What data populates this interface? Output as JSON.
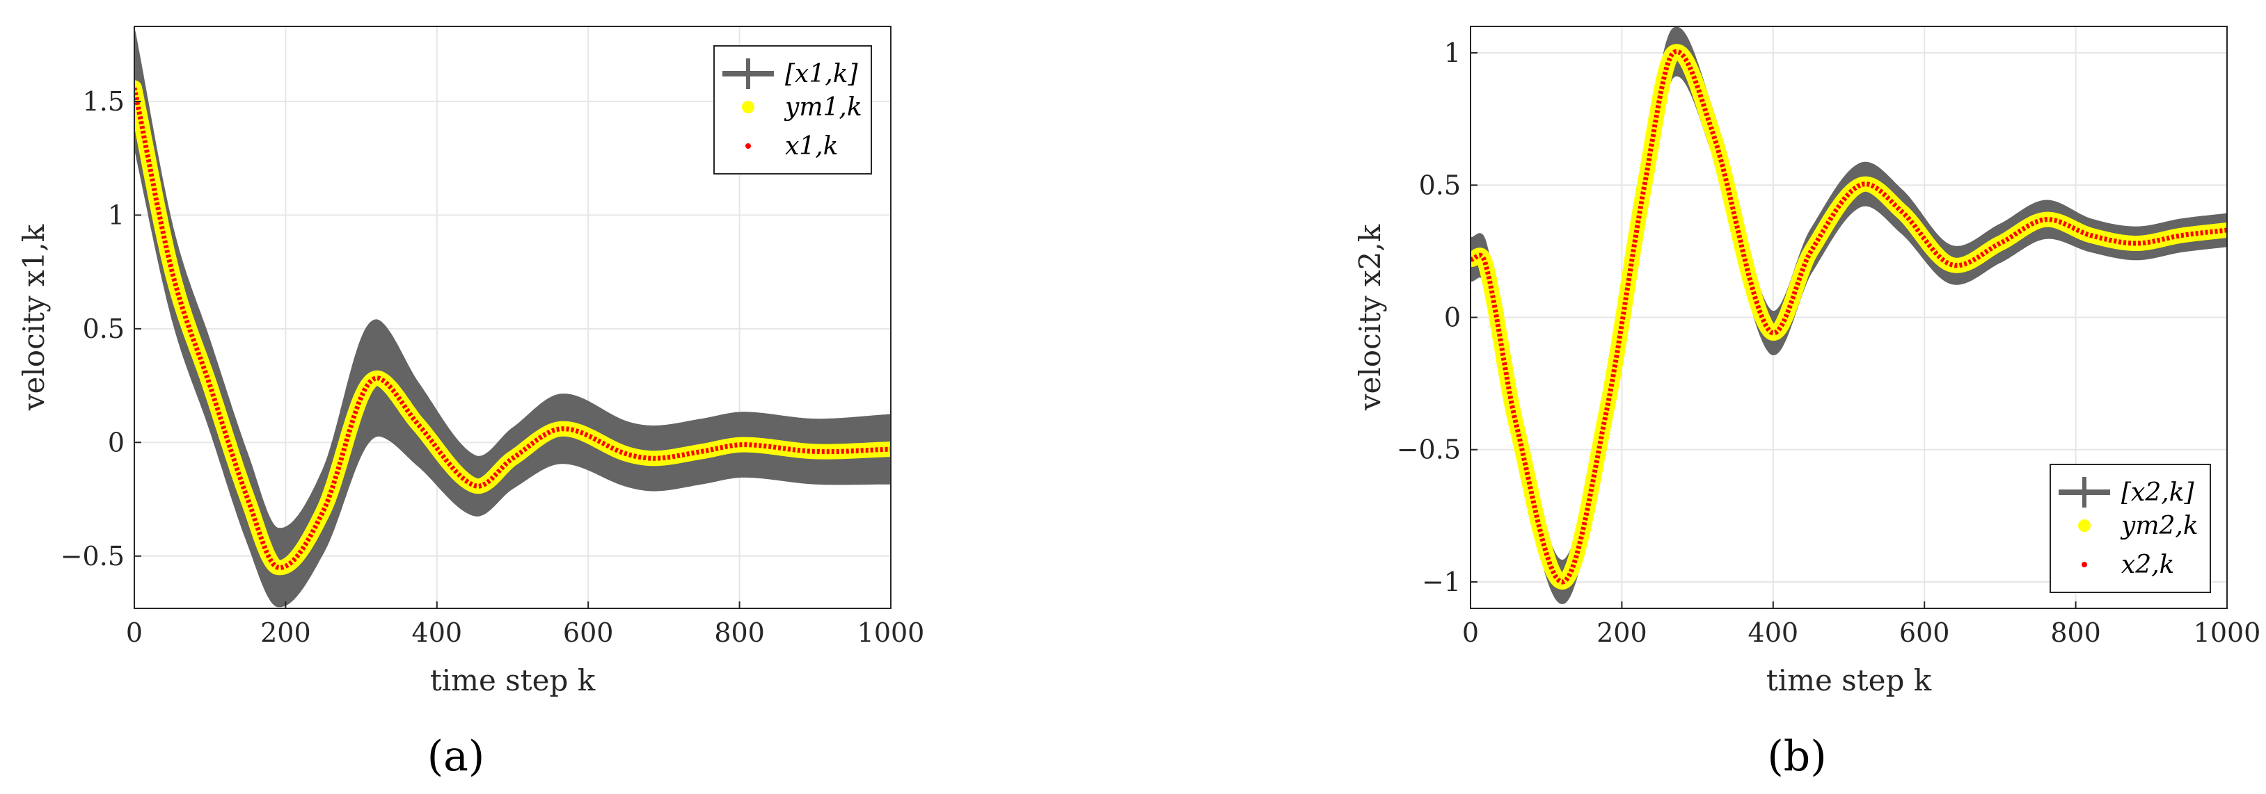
{
  "chart_data": [
    {
      "type": "line",
      "caption": "(a)",
      "xlabel": "time step k",
      "ylabel": "velocity x1,k",
      "xlim": [
        0,
        1000
      ],
      "ylim": [
        -0.73,
        1.83
      ],
      "xticks": [
        0,
        200,
        400,
        600,
        800,
        1000
      ],
      "xtick_labels": [
        "0",
        "200",
        "400",
        "600",
        "800",
        "1000"
      ],
      "yticks": [
        -0.5,
        0,
        0.5,
        1,
        1.5
      ],
      "ytick_labels": [
        "−0.5",
        "0",
        "0.5",
        "1",
        "1.5"
      ],
      "grid": true,
      "legend_position": "top-right",
      "legend": [
        "[x1,k]",
        "ym1,k",
        "x1,k"
      ],
      "series": [
        {
          "name": "[x1,k]",
          "style": "interval",
          "color": "#646464"
        },
        {
          "name": "ym1,k",
          "style": "dots",
          "color": "#ffff00"
        },
        {
          "name": "x1,k",
          "style": "dots",
          "color": "#ff0000"
        }
      ],
      "x": [
        0,
        50,
        100,
        150,
        190,
        250,
        300,
        325,
        375,
        450,
        500,
        565,
        650,
        690,
        750,
        805,
        900,
        1000
      ],
      "values": [
        1.56,
        0.75,
        0.25,
        -0.25,
        -0.55,
        -0.3,
        0.2,
        0.28,
        0.08,
        -0.19,
        -0.07,
        0.06,
        -0.05,
        -0.07,
        -0.04,
        -0.01,
        -0.04,
        -0.03
      ],
      "interval_halfwidth": [
        0.25,
        0.2,
        0.19,
        0.19,
        0.17,
        0.18,
        0.25,
        0.25,
        0.18,
        0.13,
        0.13,
        0.15,
        0.14,
        0.14,
        0.14,
        0.14,
        0.14,
        0.15
      ]
    },
    {
      "type": "line",
      "caption": "(b)",
      "xlabel": "time step k",
      "ylabel": "velocity x2,k",
      "xlim": [
        0,
        1000
      ],
      "ylim": [
        -1.1,
        1.1
      ],
      "xticks": [
        0,
        200,
        400,
        600,
        800,
        1000
      ],
      "xtick_labels": [
        "0",
        "200",
        "400",
        "600",
        "800",
        "1000"
      ],
      "yticks": [
        -1,
        -0.5,
        0,
        0.5,
        1
      ],
      "ytick_labels": [
        "−1",
        "−0.5",
        "0",
        "0.5",
        "1"
      ],
      "grid": true,
      "legend_position": "bottom-right",
      "legend": [
        "[x2,k]",
        "ym2,k",
        "x2,k"
      ],
      "series": [
        {
          "name": "[x2,k]",
          "style": "interval",
          "color": "#646464"
        },
        {
          "name": "ym2,k",
          "style": "dots",
          "color": "#ffff00"
        },
        {
          "name": "x2,k",
          "style": "dots",
          "color": "#ff0000"
        }
      ],
      "x": [
        0,
        20,
        60,
        122,
        180,
        230,
        268,
        320,
        395,
        450,
        515,
        570,
        635,
        700,
        760,
        820,
        880,
        940,
        1000
      ],
      "values": [
        0.22,
        0.2,
        -0.4,
        -1.0,
        -0.35,
        0.5,
        1.0,
        0.7,
        -0.05,
        0.25,
        0.5,
        0.4,
        0.2,
        0.28,
        0.37,
        0.31,
        0.28,
        0.31,
        0.33
      ],
      "interval_halfwidth": [
        0.08,
        0.08,
        0.08,
        0.08,
        0.08,
        0.08,
        0.09,
        0.08,
        0.08,
        0.08,
        0.08,
        0.08,
        0.07,
        0.07,
        0.07,
        0.06,
        0.06,
        0.06,
        0.06
      ]
    }
  ]
}
